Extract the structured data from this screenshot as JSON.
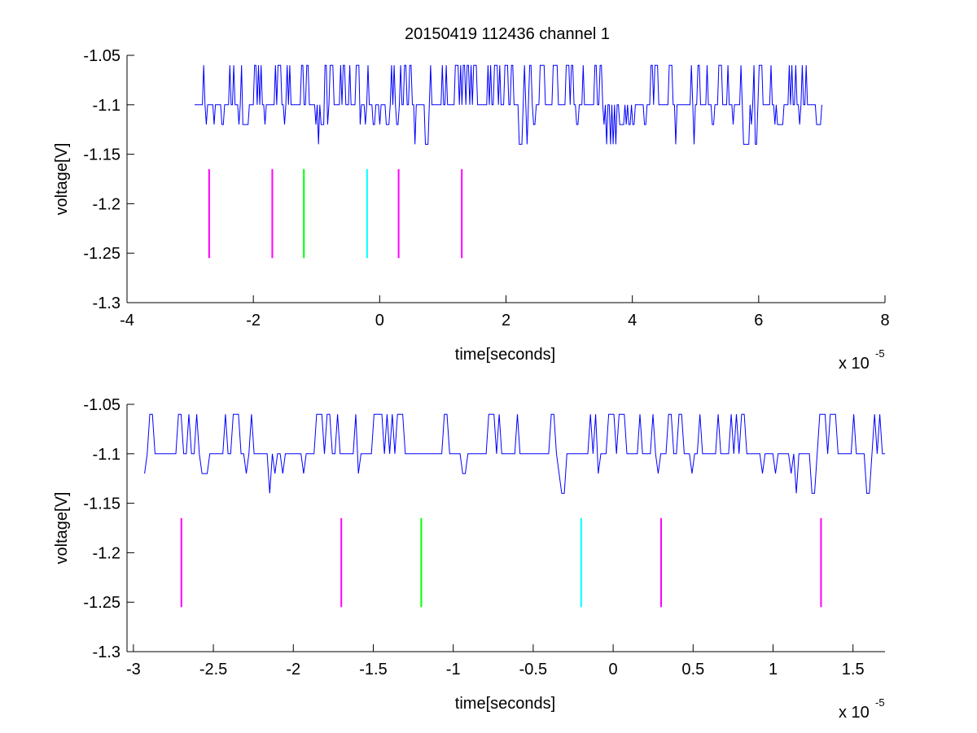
{
  "figure": {
    "title": "20150419 112436 channel 1"
  },
  "chart_data": [
    {
      "type": "line",
      "xlabel": "time[seconds]",
      "ylabel": "voltage[V]",
      "x_multiplier_label": "x 10",
      "x_multiplier_exponent": "-5",
      "xlim": [
        -4,
        8
      ],
      "ylim": [
        -1.3,
        -1.05
      ],
      "x_ticks": [
        -4,
        -2,
        0,
        2,
        4,
        6,
        8
      ],
      "x_tick_labels": [
        "-4",
        "-2",
        "0",
        "2",
        "4",
        "6",
        "8"
      ],
      "y_ticks": [
        -1.3,
        -1.25,
        -1.2,
        -1.15,
        -1.1,
        -1.05
      ],
      "y_tick_labels": [
        "-1.3",
        "-1.25",
        "-1.2",
        "-1.15",
        "-1.1",
        "-1.05"
      ],
      "grid": false,
      "series": [
        {
          "color": "#0000ff",
          "x_range": [
            -2.93,
            7.0
          ],
          "baseline": -1.1,
          "levels": [
            -1.06,
            -1.12,
            -1.14
          ],
          "trace": "digitized voltage noise toggling between levels around -1.1"
        }
      ],
      "markers": [
        {
          "x": -2.7,
          "y_top": -1.165,
          "y_bottom": -1.255,
          "color": "#ff00ff"
        },
        {
          "x": -1.7,
          "y_top": -1.165,
          "y_bottom": -1.255,
          "color": "#ff00ff"
        },
        {
          "x": -1.2,
          "y_top": -1.165,
          "y_bottom": -1.255,
          "color": "#00ff00"
        },
        {
          "x": -0.2,
          "y_top": -1.165,
          "y_bottom": -1.255,
          "color": "#00ffff"
        },
        {
          "x": 0.3,
          "y_top": -1.165,
          "y_bottom": -1.255,
          "color": "#ff00ff"
        },
        {
          "x": 1.3,
          "y_top": -1.165,
          "y_bottom": -1.255,
          "color": "#ff00ff"
        }
      ]
    },
    {
      "type": "line",
      "xlabel": "time[seconds]",
      "ylabel": "voltage[V]",
      "x_multiplier_label": "x 10",
      "x_multiplier_exponent": "-5",
      "xlim": [
        -3.04,
        1.7
      ],
      "ylim": [
        -1.3,
        -1.05
      ],
      "x_ticks": [
        -3,
        -2.5,
        -2,
        -1.5,
        -1,
        -0.5,
        0,
        0.5,
        1,
        1.5
      ],
      "x_tick_labels": [
        "-3",
        "-2.5",
        "-2",
        "-1.5",
        "-1",
        "-0.5",
        "0",
        "0.5",
        "1",
        "1.5"
      ],
      "y_ticks": [
        -1.3,
        -1.25,
        -1.2,
        -1.15,
        -1.1,
        -1.05
      ],
      "y_tick_labels": [
        "-1.3",
        "-1.25",
        "-1.2",
        "-1.15",
        "-1.1",
        "-1.05"
      ],
      "grid": false,
      "series": [
        {
          "color": "#0000ff",
          "x_range": [
            -2.93,
            1.7
          ],
          "baseline": -1.1,
          "levels": [
            -1.06,
            -1.08,
            -1.12,
            -1.14
          ],
          "trace": "zoomed digitized voltage noise around -1.1"
        }
      ],
      "markers": [
        {
          "x": -2.7,
          "y_top": -1.165,
          "y_bottom": -1.255,
          "color": "#ff00ff"
        },
        {
          "x": -1.7,
          "y_top": -1.165,
          "y_bottom": -1.255,
          "color": "#ff00ff"
        },
        {
          "x": -1.2,
          "y_top": -1.165,
          "y_bottom": -1.255,
          "color": "#00ff00"
        },
        {
          "x": -0.2,
          "y_top": -1.165,
          "y_bottom": -1.255,
          "color": "#00ffff"
        },
        {
          "x": 0.3,
          "y_top": -1.165,
          "y_bottom": -1.255,
          "color": "#ff00ff"
        },
        {
          "x": 1.3,
          "y_top": -1.165,
          "y_bottom": -1.255,
          "color": "#ff00ff"
        }
      ]
    }
  ]
}
